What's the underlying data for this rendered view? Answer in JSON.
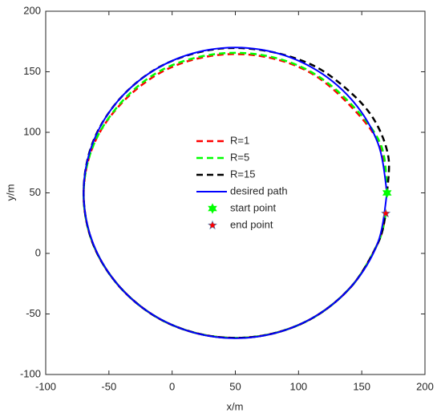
{
  "chart_data": {
    "type": "line",
    "xlabel": "x/m",
    "ylabel": "y/m",
    "xlim": [
      -100,
      200
    ],
    "ylim": [
      -100,
      200
    ],
    "xticks": [
      -100,
      -50,
      0,
      50,
      100,
      150,
      200
    ],
    "yticks": [
      -100,
      -50,
      0,
      50,
      100,
      150,
      200
    ],
    "series": [
      {
        "name": "R=1",
        "color": "#ff0000",
        "style": "dashed",
        "x": [
          170,
          164,
          139,
          108,
          70,
          30,
          -8,
          -40,
          -62,
          -70,
          -63,
          -42,
          -10,
          29,
          71,
          110,
          142,
          163,
          169
        ],
        "y": [
          50,
          90,
          124,
          150,
          163,
          163,
          150,
          124,
          90,
          50,
          9,
          -27,
          -54,
          -68,
          -68,
          -54,
          -27,
          9,
          33
        ]
      },
      {
        "name": "R=5",
        "color": "#00ff00",
        "style": "dashed",
        "x": [
          170,
          165,
          140,
          108,
          70,
          30,
          -9,
          -40,
          -62,
          -70,
          -63,
          -42,
          -10,
          29,
          71,
          110,
          142,
          163,
          169
        ],
        "y": [
          50,
          90,
          125,
          151,
          164,
          164,
          151,
          125,
          90,
          50,
          9,
          -27,
          -54,
          -68,
          -68,
          -54,
          -27,
          9,
          33
        ]
      },
      {
        "name": "R=15",
        "color": "#000000",
        "style": "dashed",
        "x": [
          170,
          171,
          160,
          140,
          110,
          70,
          30,
          -10,
          -42,
          -63,
          -70,
          -63,
          -42,
          -10,
          29,
          71,
          110,
          142,
          163,
          169
        ],
        "y": [
          50,
          80,
          110,
          134,
          156,
          168,
          168,
          154,
          127,
          91,
          50,
          9,
          -27,
          -54,
          -68,
          -68,
          -54,
          -27,
          9,
          33
        ]
      },
      {
        "name": "desired path",
        "color": "#0000ff",
        "style": "solid",
        "x": [
          170,
          162.8,
          141.9,
          110,
          70.8,
          29.2,
          -10,
          -41.9,
          -62.8,
          -70,
          -62.8,
          -41.9,
          -10,
          29.2,
          70.8,
          110,
          141.9,
          162.8,
          170
        ],
        "y": [
          50,
          91,
          127.1,
          153.9,
          168.2,
          168.2,
          153.9,
          127.1,
          91,
          50,
          9,
          -27.1,
          -53.9,
          -68.2,
          -68.2,
          -53.9,
          -27.1,
          9,
          50
        ]
      },
      {
        "name": "start point",
        "color": "#00ff00",
        "style": "marker",
        "marker": "hexagram",
        "x": [
          170
        ],
        "y": [
          50
        ]
      },
      {
        "name": "end point",
        "color": "#ff0000",
        "style": "marker",
        "marker": "pentagram",
        "x": [
          169
        ],
        "y": [
          33
        ]
      }
    ]
  }
}
